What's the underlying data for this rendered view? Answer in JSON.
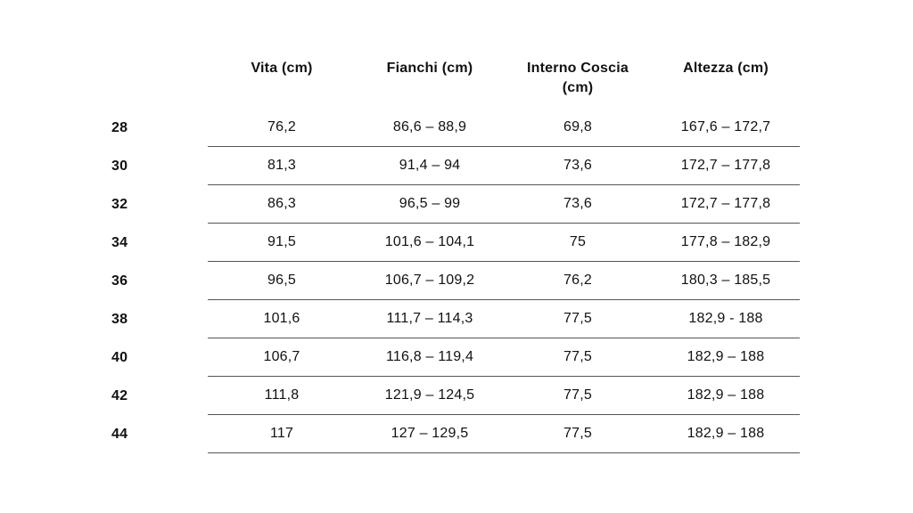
{
  "colors": {
    "background": "#ffffff",
    "text": "#111111",
    "rule_line": "#555555"
  },
  "chart_data": {
    "type": "table",
    "title": "",
    "columns": [
      "",
      "Vita (cm)",
      "Fianchi (cm)",
      "Interno Coscia (cm)",
      "Altezza (cm)"
    ],
    "rows": [
      [
        "28",
        "76,2",
        "86,6 – 88,9",
        "69,8",
        "167,6 – 172,7"
      ],
      [
        "30",
        "81,3",
        "91,4 – 94",
        "73,6",
        "172,7 – 177,8"
      ],
      [
        "32",
        "86,3",
        "96,5 – 99",
        "73,6",
        "172,7 – 177,8"
      ],
      [
        "34",
        "91,5",
        "101,6 – 104,1",
        "75",
        "177,8 – 182,9"
      ],
      [
        "36",
        "96,5",
        "106,7 – 109,2",
        "76,2",
        "180,3 – 185,5"
      ],
      [
        "38",
        "101,6",
        "111,7 – 114,3",
        "77,5",
        "182,9 - 188"
      ],
      [
        "40",
        "106,7",
        "116,8 – 119,4",
        "77,5",
        "182,9 – 188"
      ],
      [
        "42",
        "111,8",
        "121,9 – 124,5",
        "77,5",
        "182,9 – 188"
      ],
      [
        "44",
        "117",
        "127 – 129,5",
        "77,5",
        "182,9 – 188"
      ]
    ],
    "layout": {
      "grid": "horizontal rules under each data row, value columns only",
      "header_bold": true,
      "row_label_bold": true
    }
  }
}
